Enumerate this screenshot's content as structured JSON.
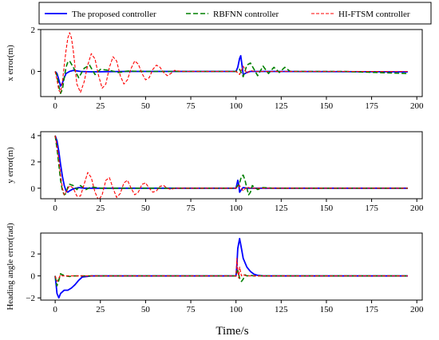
{
  "chart_data": {
    "type": "line",
    "legend": {
      "placement": "top",
      "entries": [
        {
          "name": "The proposed controller",
          "color": "#0000ff",
          "dash": "solid"
        },
        {
          "name": "RBFNN controller",
          "color": "#008000",
          "dash": "dashed"
        },
        {
          "name": "HI-FTSM controller",
          "color": "#ff0000",
          "dash": "dotted-dash"
        }
      ]
    },
    "xlabel": "Time/s",
    "xlim": [
      -8,
      203
    ],
    "xticks": [
      0,
      25,
      50,
      75,
      100,
      125,
      150,
      175,
      200
    ],
    "panels": [
      {
        "ylabel": "x error(m)",
        "ylim": [
          -1.2,
          2.0
        ],
        "yticks": [
          -2,
          0,
          2
        ],
        "ytick_labels": [
          "",
          "0",
          "2"
        ],
        "series": [
          {
            "name": "The proposed controller",
            "x": [
              0,
              1,
              2,
              3,
              4,
              5,
              6,
              8,
              10,
              14,
              20,
              40,
              100,
              101,
              102,
              102.6,
              103,
              104,
              105,
              106,
              108,
              112,
              120,
              195
            ],
            "y": [
              0,
              -0.1,
              -0.4,
              -0.7,
              -0.55,
              -0.3,
              -0.1,
              0.0,
              0.05,
              0.0,
              -0.02,
              0.0,
              0.0,
              0.2,
              0.62,
              0.75,
              0.5,
              -0.15,
              -0.1,
              -0.05,
              0.0,
              0.0,
              0.0,
              -0.02
            ]
          },
          {
            "name": "RBFNN controller",
            "x": [
              0,
              1,
              2,
              3,
              4,
              5,
              6,
              7,
              8,
              10,
              13,
              16,
              19,
              22,
              25,
              30,
              35,
              40,
              50,
              100,
              102,
              104,
              106,
              108,
              110,
              112,
              115,
              118,
              121,
              124,
              127,
              130,
              140,
              160,
              195
            ],
            "y": [
              0,
              -0.2,
              -0.7,
              -1.05,
              -0.85,
              -0.3,
              0.2,
              0.45,
              0.5,
              0.2,
              -0.3,
              0.15,
              0.3,
              -0.15,
              0.1,
              0.05,
              -0.05,
              0.02,
              0.0,
              0.0,
              0.1,
              -0.25,
              0.3,
              0.4,
              0.1,
              -0.2,
              0.25,
              -0.1,
              0.2,
              -0.05,
              0.2,
              0.0,
              0.0,
              0.0,
              -0.1
            ]
          },
          {
            "name": "HI-FTSM controller",
            "x": [
              0,
              1,
              2,
              3,
              4,
              5,
              6,
              7,
              8,
              9,
              10,
              12,
              14,
              16,
              18,
              20,
              22,
              24,
              26,
              28,
              30,
              32,
              34,
              36,
              38,
              40,
              42,
              44,
              46,
              48,
              50,
              52,
              54,
              56,
              58,
              60,
              62,
              64,
              66,
              70,
              100,
              102,
              104,
              106,
              108,
              110,
              120,
              195
            ],
            "y": [
              0,
              -0.4,
              -0.9,
              -1.0,
              -0.5,
              0.3,
              1.0,
              1.6,
              1.85,
              1.6,
              1.0,
              -0.6,
              -1.0,
              -0.5,
              0.3,
              0.85,
              0.6,
              -0.2,
              -0.8,
              -0.6,
              0.2,
              0.7,
              0.5,
              -0.2,
              -0.6,
              -0.4,
              0.15,
              0.5,
              0.35,
              -0.1,
              -0.4,
              -0.3,
              0.1,
              0.3,
              0.2,
              -0.05,
              -0.2,
              -0.1,
              0.05,
              0.0,
              0.0,
              -0.15,
              0.25,
              -0.1,
              0.05,
              0.0,
              0.0,
              0.0
            ]
          }
        ]
      },
      {
        "ylabel": "y error(m)",
        "ylim": [
          -0.8,
          4.3
        ],
        "yticks": [
          0,
          2,
          4
        ],
        "ytick_labels": [
          "0",
          "2",
          "4"
        ],
        "series": [
          {
            "name": "The proposed controller",
            "x": [
              0,
              1,
              2,
              3,
              4,
              5,
              6,
              7,
              8,
              10,
              13,
              16,
              20,
              30,
              100,
              100.5,
              101,
              101.5,
              102,
              103,
              104,
              106,
              110,
              195
            ],
            "y": [
              4.0,
              3.6,
              2.8,
              1.8,
              0.9,
              0.2,
              -0.2,
              -0.3,
              -0.2,
              -0.05,
              0.05,
              0.0,
              0.0,
              0.0,
              0.0,
              0.3,
              0.6,
              0.3,
              -0.3,
              -0.1,
              0.05,
              0.0,
              0.0,
              0.0
            ]
          },
          {
            "name": "RBFNN controller",
            "x": [
              0,
              1,
              2,
              3,
              4,
              5,
              6,
              7,
              8,
              10,
              12,
              14,
              17,
              20,
              25,
              30,
              100,
              102,
              103,
              104,
              105,
              106,
              107,
              108,
              109,
              110,
              112,
              115,
              120,
              195
            ],
            "y": [
              4.0,
              3.0,
              1.8,
              0.6,
              -0.2,
              -0.5,
              -0.4,
              0.1,
              0.3,
              0.2,
              -0.1,
              0.2,
              -0.1,
              0.1,
              0.0,
              0.0,
              0.0,
              0.4,
              0.9,
              1.0,
              0.6,
              0.0,
              -0.5,
              -0.3,
              0.2,
              0.1,
              -0.1,
              0.05,
              0.0,
              0.0
            ]
          },
          {
            "name": "HI-FTSM controller",
            "x": [
              0,
              1,
              2,
              3,
              4,
              5,
              6,
              8,
              10,
              12,
              14,
              16,
              18,
              20,
              22,
              24,
              26,
              28,
              30,
              32,
              34,
              36,
              38,
              40,
              42,
              44,
              46,
              48,
              50,
              52,
              54,
              56,
              58,
              60,
              62,
              64,
              66,
              70,
              100,
              102,
              104,
              106,
              108,
              110,
              120,
              195
            ],
            "y": [
              4.0,
              3.2,
              2.2,
              1.0,
              0.0,
              -0.5,
              -0.3,
              0.2,
              0.0,
              -0.6,
              -0.6,
              0.3,
              1.2,
              0.8,
              -0.3,
              -0.9,
              -0.5,
              0.6,
              0.8,
              0.0,
              -0.7,
              -0.4,
              0.4,
              0.6,
              0.0,
              -0.5,
              -0.3,
              0.3,
              0.4,
              0.0,
              -0.3,
              -0.2,
              0.15,
              0.2,
              0.0,
              -0.1,
              0.0,
              0.0,
              0.0,
              0.2,
              -0.2,
              0.1,
              0.0,
              0.0,
              0.0,
              0.0
            ]
          }
        ]
      },
      {
        "ylabel": "Heading angle error(rad)",
        "ylim": [
          -2.2,
          3.9
        ],
        "yticks": [
          -2,
          0,
          2
        ],
        "ytick_labels": [
          "−2",
          "0",
          "2"
        ],
        "series": [
          {
            "name": "The proposed controller",
            "x": [
              0,
              0.5,
              1,
              2,
              3,
              5,
              7,
              9,
              11,
              13,
              15,
              20,
              100,
              100.5,
              101,
              102,
              103,
              104,
              106,
              108,
              110,
              112,
              115,
              195
            ],
            "y": [
              0,
              -0.8,
              -1.6,
              -2.0,
              -1.6,
              -1.3,
              -1.3,
              -1.1,
              -0.8,
              -0.4,
              -0.1,
              0.0,
              0.0,
              1.0,
              2.5,
              3.4,
              2.5,
              1.6,
              0.8,
              0.4,
              0.15,
              0.05,
              0.0,
              0.0
            ]
          },
          {
            "name": "RBFNN controller",
            "x": [
              0,
              1,
              2,
              3,
              4,
              6,
              8,
              10,
              20,
              100,
              101,
              102,
              103,
              104,
              105,
              106,
              108,
              110,
              195
            ],
            "y": [
              0,
              -0.9,
              -0.4,
              0.2,
              0.1,
              0.0,
              -0.05,
              0.0,
              0.0,
              0.0,
              0.5,
              -0.2,
              -0.5,
              -0.3,
              0.1,
              0.0,
              0.05,
              0.0,
              0.0
            ]
          },
          {
            "name": "HI-FTSM controller",
            "x": [
              0,
              1,
              2,
              3,
              4,
              6,
              8,
              10,
              20,
              100,
              100.5,
              101,
              101.5,
              102,
              103,
              104,
              106,
              110,
              195
            ],
            "y": [
              0,
              -0.5,
              -0.2,
              0.1,
              0.0,
              0.0,
              0.0,
              0.0,
              0.0,
              0.0,
              1.6,
              0.5,
              -0.2,
              0.8,
              0.0,
              0.1,
              0.0,
              0.0,
              0.0
            ]
          }
        ]
      }
    ]
  }
}
